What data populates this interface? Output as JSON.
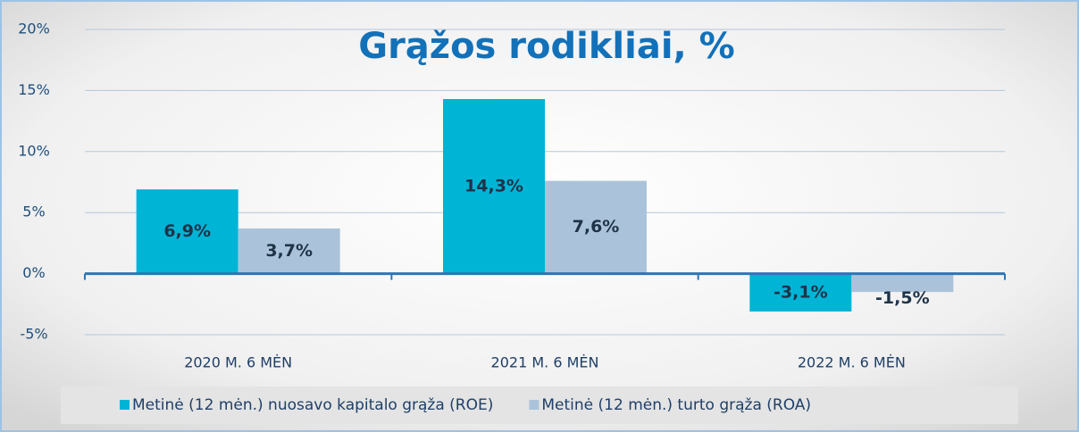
{
  "chart_data": {
    "type": "bar",
    "title": "Grąžos rodikliai, %",
    "categories": [
      "2020 M. 6 MĖN",
      "2021 M. 6 MĖN",
      "2022 M. 6 MĖN"
    ],
    "series": [
      {
        "name": "Metinė (12 mėn.) nuosavo kapitalo grąža (ROE)",
        "color": "#00b4d6",
        "values": [
          6.9,
          14.3,
          -3.1
        ],
        "value_labels": [
          "6,9%",
          "14,3%",
          "-3,1%"
        ]
      },
      {
        "name": "Metinė  (12 mėn.) turto grąža (ROA)",
        "color": "#abc3da",
        "values": [
          3.7,
          7.6,
          -1.5
        ],
        "value_labels": [
          "3,7%",
          "7,6%",
          "-1,5%"
        ]
      }
    ],
    "ylim": [
      -5,
      20
    ],
    "yticks": [
      {
        "value": -5,
        "label": "-5%"
      },
      {
        "value": 0,
        "label": "0%"
      },
      {
        "value": 5,
        "label": "5%"
      },
      {
        "value": 10,
        "label": "10%"
      },
      {
        "value": 15,
        "label": "15%"
      },
      {
        "value": 20,
        "label": "20%"
      }
    ],
    "grid": true,
    "legend": "bottom"
  }
}
